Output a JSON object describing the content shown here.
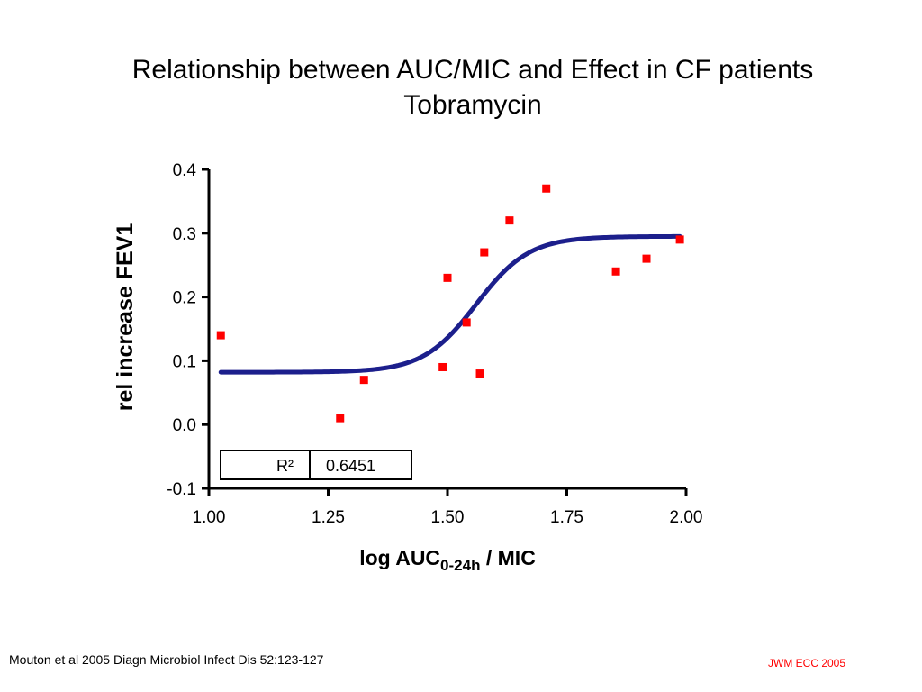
{
  "title": "Relationship between AUC/MIC and Effect in CF patients",
  "subtitle": "Tobramycin",
  "footer": {
    "citation": "Mouton et al 2005 Diagn Microbiol Infect Dis 52:123-127",
    "credit": "JWM ECC 2005"
  },
  "chart_data": {
    "type": "scatter",
    "title": "Relationship between AUC/MIC and Effect in CF patients",
    "subtitle": "Tobramycin",
    "xlabel": {
      "main": "log AUC",
      "subscript": "0-24h",
      "suffix": " / MIC"
    },
    "ylabel": "rel increase FEV1",
    "xlim": [
      1.0,
      2.0
    ],
    "ylim": [
      -0.1,
      0.4
    ],
    "xticks": [
      "1.00",
      "1.25",
      "1.50",
      "1.75",
      "2.00"
    ],
    "yticks": [
      "-0.1",
      "0.0",
      "0.1",
      "0.2",
      "0.3",
      "0.4"
    ],
    "grid": false,
    "points": [
      {
        "x": 1.025,
        "y": 0.14
      },
      {
        "x": 1.275,
        "y": 0.01
      },
      {
        "x": 1.325,
        "y": 0.07
      },
      {
        "x": 1.49,
        "y": 0.09
      },
      {
        "x": 1.5,
        "y": 0.23
      },
      {
        "x": 1.54,
        "y": 0.16
      },
      {
        "x": 1.568,
        "y": 0.08
      },
      {
        "x": 1.577,
        "y": 0.27
      },
      {
        "x": 1.63,
        "y": 0.32
      },
      {
        "x": 1.707,
        "y": 0.37
      },
      {
        "x": 1.853,
        "y": 0.24
      },
      {
        "x": 1.917,
        "y": 0.26
      },
      {
        "x": 1.987,
        "y": 0.29
      }
    ],
    "fit": {
      "type": "sigmoid",
      "bottom": 0.082,
      "top": 0.295,
      "ec50": 1.56,
      "slope": 18,
      "x_range": [
        1.025,
        1.987
      ]
    },
    "stats_table": {
      "label": "R²",
      "value": "0.6451"
    },
    "colors": {
      "points": "#ff0000",
      "fit": "#1c1f8c",
      "axes": "#000000"
    }
  }
}
